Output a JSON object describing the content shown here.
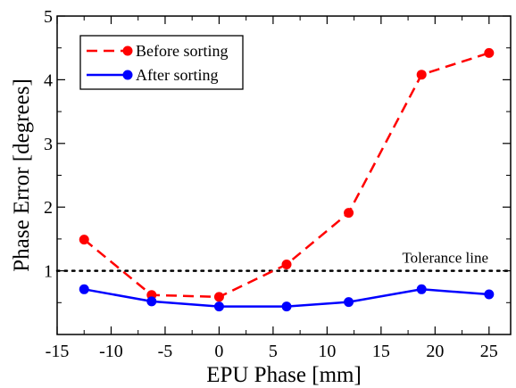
{
  "chart_data": {
    "type": "line",
    "title": "",
    "xlabel": "EPU Phase [mm]",
    "ylabel": "Phase Error [degrees]",
    "xlim": [
      -15,
      27
    ],
    "ylim": [
      0,
      5
    ],
    "xticks": [
      -15,
      -10,
      -5,
      0,
      5,
      10,
      15,
      20,
      25
    ],
    "xtick_labels": [
      "-15",
      "-10",
      "-5",
      "0",
      "5",
      "10",
      "15",
      "20",
      "25"
    ],
    "yticks": [
      1,
      2,
      3,
      4,
      5
    ],
    "ytick_labels": [
      "1",
      "2",
      "3",
      "4",
      "5"
    ],
    "grid": false,
    "legend_position": "top-left",
    "series": [
      {
        "name": "Before sorting",
        "color": "#ff0000",
        "line_style": "dashed",
        "marker": "circle",
        "x": [
          -12.5,
          -6.25,
          0,
          6.25,
          12.0,
          18.75,
          25.0
        ],
        "y": [
          1.49,
          0.62,
          0.59,
          1.1,
          1.91,
          4.08,
          4.42
        ]
      },
      {
        "name": "After sorting",
        "color": "#0000ff",
        "line_style": "solid",
        "marker": "circle",
        "x": [
          -12.5,
          -6.25,
          0,
          6.25,
          12.0,
          18.75,
          25.0
        ],
        "y": [
          0.71,
          0.52,
          0.44,
          0.44,
          0.51,
          0.71,
          0.63
        ]
      }
    ],
    "annotations": [
      {
        "text": "Tolerance line",
        "y": 1.0,
        "line_style": "dotted",
        "color": "#000000"
      }
    ]
  }
}
